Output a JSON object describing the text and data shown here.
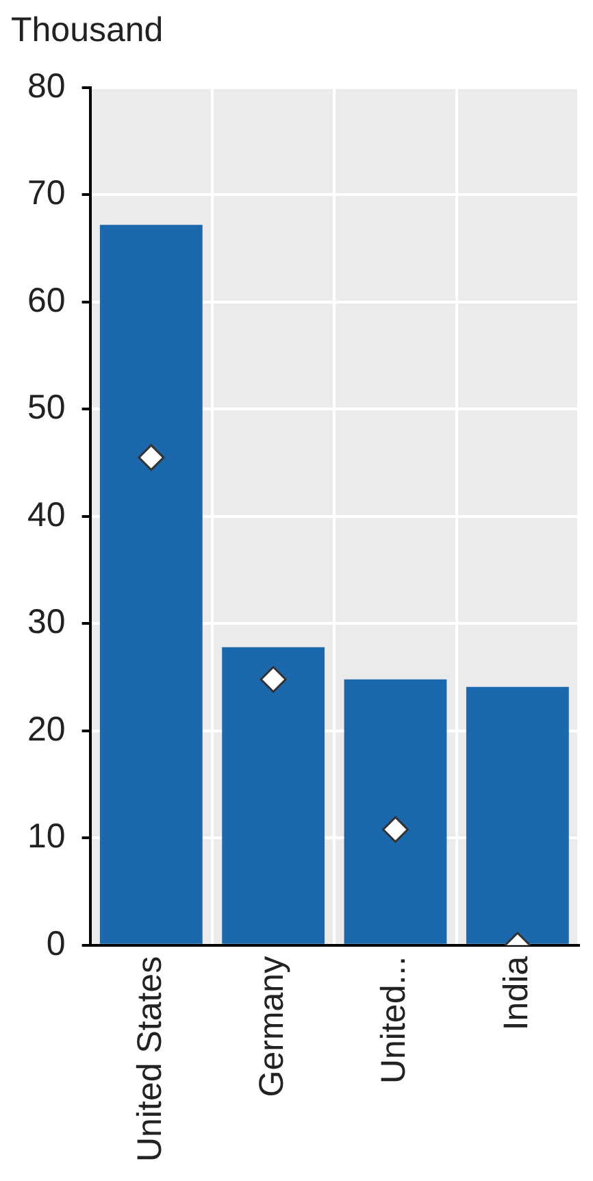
{
  "chart_data": {
    "type": "bar",
    "ylabel": "Thousand",
    "categories": [
      "United States",
      "Germany",
      "United...",
      "India"
    ],
    "series": [
      {
        "color": "#1b68ac",
        "values": [
          67.2,
          27.8,
          24.8,
          24.1
        ]
      },
      {
        "type": "scatter",
        "color": "#ffffff",
        "marker": "diamond",
        "values": [
          45.5,
          24.8,
          10.8,
          0
        ]
      }
    ],
    "ylim": [
      0,
      80
    ],
    "yticks": [
      0,
      10,
      20,
      30,
      40,
      50,
      60,
      70,
      80
    ],
    "grid": true,
    "legend": false
  }
}
